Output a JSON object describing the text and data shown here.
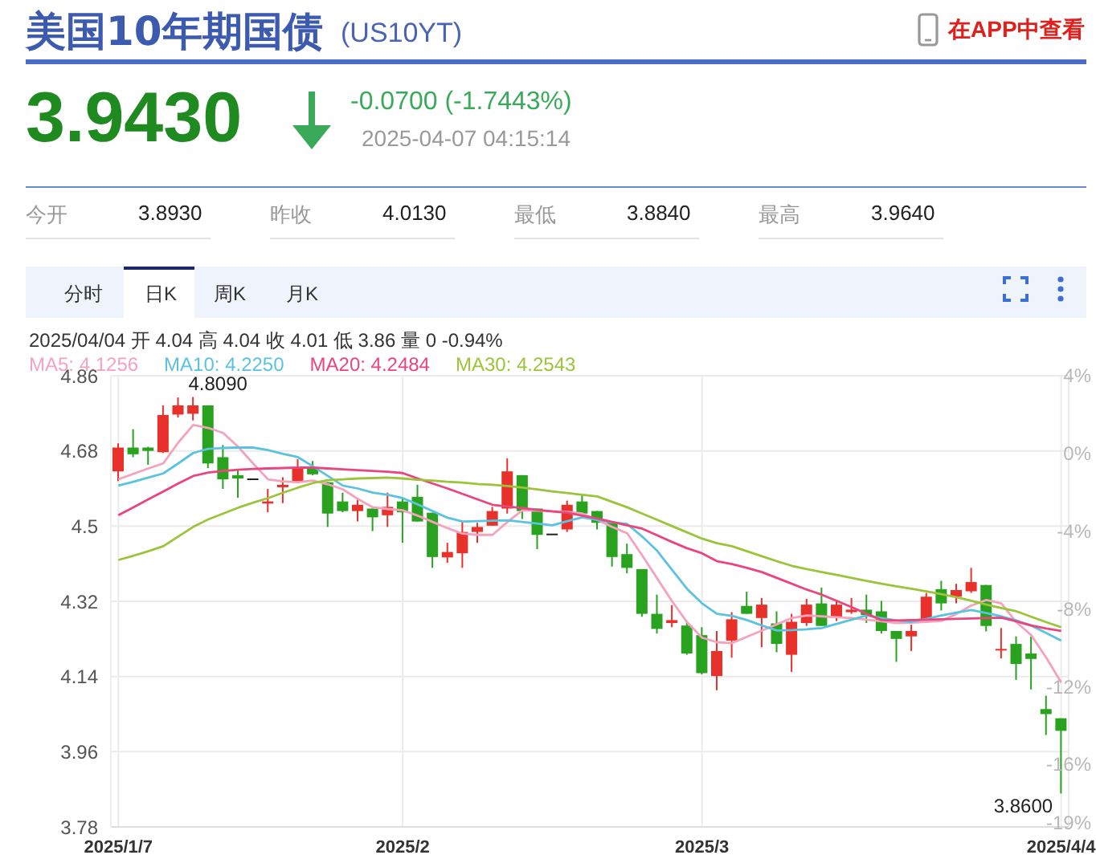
{
  "chart_data": {
    "type": "candlestick",
    "title": "美国10年期国债",
    "subtitle": "(US10YT)",
    "categories": [
      "2025/1/7",
      null,
      null,
      null,
      null,
      null,
      null,
      null,
      null,
      null,
      null,
      null,
      null,
      null,
      null,
      null,
      null,
      null,
      null,
      "2025/2",
      null,
      null,
      null,
      null,
      null,
      null,
      null,
      null,
      null,
      null,
      null,
      null,
      null,
      null,
      null,
      null,
      null,
      null,
      null,
      "2025/3",
      null,
      null,
      null,
      null,
      null,
      null,
      null,
      null,
      null,
      null,
      null,
      null,
      null,
      null,
      null,
      null,
      null,
      null,
      null,
      null,
      null,
      null,
      null,
      "2025/4/4"
    ],
    "ohlc": [
      [
        4.631,
        4.698,
        4.608,
        4.688
      ],
      [
        4.688,
        4.732,
        4.665,
        4.672
      ],
      [
        4.688,
        4.69,
        4.647,
        4.68
      ],
      [
        4.677,
        4.789,
        4.675,
        4.766
      ],
      [
        4.767,
        4.808,
        4.76,
        4.789
      ],
      [
        4.769,
        4.809,
        4.753,
        4.789
      ],
      [
        4.789,
        4.789,
        4.639,
        4.65
      ],
      [
        4.665,
        4.694,
        4.589,
        4.612
      ],
      [
        4.622,
        4.635,
        4.568,
        4.614
      ],
      [
        4.614,
        4.614,
        4.614,
        4.614
      ],
      [
        4.554,
        4.589,
        4.533,
        4.559
      ],
      [
        4.593,
        4.617,
        4.555,
        4.599
      ],
      [
        4.605,
        4.66,
        4.605,
        4.64
      ],
      [
        4.64,
        4.656,
        4.622,
        4.624
      ],
      [
        4.605,
        4.605,
        4.498,
        4.53
      ],
      [
        4.559,
        4.58,
        4.533,
        4.536
      ],
      [
        4.536,
        4.567,
        4.511,
        4.551
      ],
      [
        4.542,
        4.542,
        4.488,
        4.521
      ],
      [
        4.526,
        4.58,
        4.498,
        4.546
      ],
      [
        4.559,
        4.567,
        4.46,
        4.533
      ],
      [
        4.57,
        4.599,
        4.511,
        4.511
      ],
      [
        4.532,
        4.532,
        4.4,
        4.426
      ],
      [
        4.425,
        4.46,
        4.412,
        4.438
      ],
      [
        4.435,
        4.511,
        4.4,
        4.486
      ],
      [
        4.486,
        4.508,
        4.46,
        4.498
      ],
      [
        4.501,
        4.546,
        4.501,
        4.536
      ],
      [
        4.542,
        4.662,
        4.53,
        4.631
      ],
      [
        4.622,
        4.622,
        4.517,
        4.536
      ],
      [
        4.542,
        4.542,
        4.445,
        4.479
      ],
      [
        4.482,
        4.482,
        4.482,
        4.482
      ],
      [
        4.492,
        4.561,
        4.486,
        4.551
      ],
      [
        4.559,
        4.577,
        4.53,
        4.53
      ],
      [
        4.536,
        4.536,
        4.492,
        4.508
      ],
      [
        4.508,
        4.508,
        4.403,
        4.426
      ],
      [
        4.433,
        4.458,
        4.387,
        4.4
      ],
      [
        4.397,
        4.397,
        4.283,
        4.29
      ],
      [
        4.29,
        4.336,
        4.243,
        4.254
      ],
      [
        4.268,
        4.311,
        4.258,
        4.275
      ],
      [
        4.262,
        4.273,
        4.192,
        4.195
      ],
      [
        4.239,
        4.258,
        4.145,
        4.148
      ],
      [
        4.141,
        4.249,
        4.107,
        4.201
      ],
      [
        4.226,
        4.294,
        4.185,
        4.277
      ],
      [
        4.309,
        4.343,
        4.29,
        4.29
      ],
      [
        4.28,
        4.328,
        4.21,
        4.312
      ],
      [
        4.267,
        4.296,
        4.198,
        4.218
      ],
      [
        4.192,
        4.29,
        4.151,
        4.271
      ],
      [
        4.268,
        4.326,
        4.261,
        4.312
      ],
      [
        4.315,
        4.353,
        4.261,
        4.261
      ],
      [
        4.281,
        4.324,
        4.273,
        4.312
      ],
      [
        4.294,
        4.328,
        4.29,
        4.3
      ],
      [
        4.3,
        4.336,
        4.268,
        4.287
      ],
      [
        4.296,
        4.321,
        4.243,
        4.249
      ],
      [
        4.249,
        4.249,
        4.175,
        4.23
      ],
      [
        4.236,
        4.264,
        4.201,
        4.249
      ],
      [
        4.275,
        4.34,
        4.275,
        4.331
      ],
      [
        4.349,
        4.369,
        4.298,
        4.315
      ],
      [
        4.331,
        4.362,
        4.315,
        4.347
      ],
      [
        4.344,
        4.4,
        4.34,
        4.366
      ],
      [
        4.359,
        4.359,
        4.248,
        4.261
      ],
      [
        4.203,
        4.256,
        4.183,
        4.206
      ],
      [
        4.218,
        4.236,
        4.132,
        4.17
      ],
      [
        4.195,
        4.236,
        4.109,
        4.182
      ],
      [
        4.062,
        4.094,
        4.0,
        4.05
      ],
      [
        4.04,
        4.04,
        3.86,
        4.01
      ]
    ],
    "series": [
      {
        "name": "MA5: 4.1256",
        "type": "line",
        "color": "#f4a3bd",
        "values": [
          4.612,
          4.625,
          4.638,
          4.65,
          4.7,
          4.742,
          4.735,
          4.723,
          4.69,
          4.65,
          4.612,
          4.607,
          4.605,
          4.609,
          4.6,
          4.588,
          4.565,
          4.545,
          4.541,
          4.538,
          4.525,
          4.51,
          4.495,
          4.482,
          4.479,
          4.479,
          4.51,
          4.538,
          4.537,
          4.536,
          4.534,
          4.53,
          4.515,
          4.498,
          4.483,
          4.43,
          4.375,
          4.32,
          4.27,
          4.233,
          4.222,
          4.22,
          4.235,
          4.25,
          4.265,
          4.28,
          4.286,
          4.284,
          4.282,
          4.28,
          4.276,
          4.272,
          4.268,
          4.269,
          4.271,
          4.273,
          4.29,
          4.31,
          4.323,
          4.315,
          4.27,
          4.239,
          4.185,
          4.126
        ]
      },
      {
        "name": "MA10: 4.2250",
        "type": "line",
        "color": "#5bc2e0",
        "values": [
          4.597,
          4.606,
          4.616,
          4.626,
          4.65,
          4.675,
          4.685,
          4.687,
          4.688,
          4.688,
          4.682,
          4.673,
          4.665,
          4.643,
          4.62,
          4.597,
          4.59,
          4.58,
          4.575,
          4.567,
          4.552,
          4.536,
          4.52,
          4.511,
          4.512,
          4.513,
          4.514,
          4.51,
          4.506,
          4.502,
          4.512,
          4.521,
          4.515,
          4.509,
          4.505,
          4.475,
          4.441,
          4.395,
          4.35,
          4.315,
          4.29,
          4.285,
          4.275,
          4.262,
          4.25,
          4.251,
          4.253,
          4.256,
          4.266,
          4.276,
          4.286,
          4.28,
          4.274,
          4.271,
          4.278,
          4.286,
          4.293,
          4.299,
          4.292,
          4.284,
          4.274,
          4.262,
          4.244,
          4.226
        ]
      },
      {
        "name": "MA20: 4.2484",
        "type": "line",
        "color": "#e8467c",
        "values": [
          4.526,
          4.545,
          4.564,
          4.583,
          4.602,
          4.62,
          4.628,
          4.632,
          4.635,
          4.637,
          4.638,
          4.639,
          4.64,
          4.64,
          4.638,
          4.636,
          4.634,
          4.632,
          4.63,
          4.627,
          4.614,
          4.602,
          4.59,
          4.577,
          4.564,
          4.551,
          4.547,
          4.543,
          4.539,
          4.535,
          4.532,
          4.525,
          4.518,
          4.51,
          4.502,
          4.494,
          4.478,
          4.462,
          4.447,
          4.435,
          4.416,
          4.409,
          4.4,
          4.39,
          4.376,
          4.362,
          4.348,
          4.336,
          4.321,
          4.306,
          4.29,
          4.275,
          4.274,
          4.275,
          4.276,
          4.277,
          4.278,
          4.279,
          4.28,
          4.281,
          4.272,
          4.262,
          4.255,
          4.249
        ]
      },
      {
        "name": "MA30: 4.2543",
        "type": "line",
        "color": "#9cc43a",
        "values": [
          4.419,
          4.429,
          4.44,
          4.452,
          4.475,
          4.498,
          4.516,
          4.53,
          4.544,
          4.556,
          4.567,
          4.58,
          4.592,
          4.603,
          4.61,
          4.612,
          4.614,
          4.615,
          4.616,
          4.614,
          4.611,
          4.609,
          4.606,
          4.604,
          4.601,
          4.599,
          4.596,
          4.592,
          4.588,
          4.583,
          4.579,
          4.575,
          4.571,
          4.558,
          4.545,
          4.53,
          4.515,
          4.5,
          4.485,
          4.47,
          4.459,
          4.452,
          4.44,
          4.428,
          4.416,
          4.405,
          4.397,
          4.39,
          4.383,
          4.376,
          4.369,
          4.362,
          4.356,
          4.35,
          4.344,
          4.337,
          4.33,
          4.321,
          4.312,
          4.304,
          4.296,
          4.283,
          4.27,
          4.258
        ]
      }
    ],
    "ylim": [
      3.78,
      4.86
    ],
    "yticks": [
      3.78,
      3.96,
      4.14,
      4.32,
      4.5,
      4.68,
      4.86
    ],
    "y2lim": [
      -19.2,
      4
    ],
    "y2ticks": [
      {
        "value": -19,
        "label": "-19%"
      },
      {
        "value": -16,
        "label": "-16%"
      },
      {
        "value": -12,
        "label": "-12%"
      },
      {
        "value": -8,
        "label": "-8%"
      },
      {
        "value": -4,
        "label": "-4%"
      },
      {
        "value": 0,
        "label": "0%"
      },
      {
        "value": 4,
        "label": "4%"
      }
    ],
    "grid": true,
    "legend": "top left",
    "annotations": [
      "在APP中查看",
      "3.9430",
      "-0.0700 (-1.7443%)",
      "2025-04-07 04:15:14",
      "今开",
      "3.8930",
      "昨收",
      "4.0130",
      "最低",
      "3.8840",
      "最高",
      "3.9640",
      "分时",
      "日K",
      "周K",
      "月K",
      "2025/04/04 开 4.04 高 4.04 收 4.01 低 3.86 量 0 -0.94%",
      "4.8090",
      "3.8600"
    ]
  }
}
